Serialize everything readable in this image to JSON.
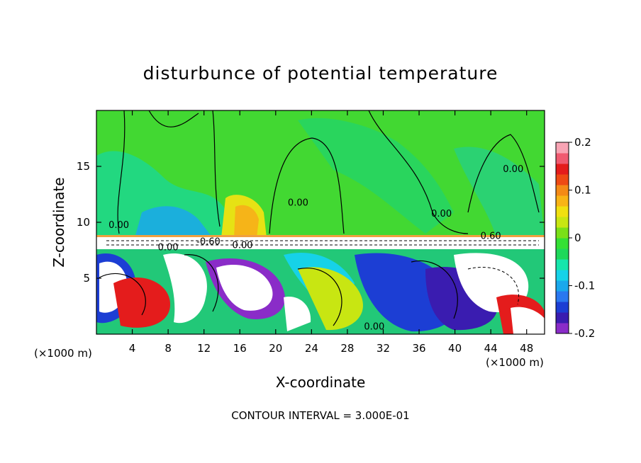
{
  "chart_data": {
    "type": "heatmap",
    "title": "disturbunce of potential temperature",
    "xlabel": "X-coordinate",
    "ylabel": "Z-coordinate",
    "x_unit_label_left": "(×1000 m)",
    "x_unit_label_right": "(×1000 m)",
    "xlim": [
      0,
      50
    ],
    "ylim": [
      0,
      20
    ],
    "x_ticks": [
      4,
      8,
      12,
      16,
      20,
      24,
      28,
      32,
      36,
      40,
      44,
      48
    ],
    "y_ticks": [
      5,
      10,
      15
    ],
    "footer": "CONTOUR INTERVAL = 3.000E-01",
    "contour_labels": [
      {
        "text": "0.00",
        "x": 2.5,
        "y": 9.5
      },
      {
        "text": "0.00",
        "x": 8.0,
        "y": 7.5
      },
      {
        "text": "0.00",
        "x": 16.3,
        "y": 7.7
      },
      {
        "text": "0.00",
        "x": 22.5,
        "y": 11.5
      },
      {
        "text": "0.00",
        "x": 38.5,
        "y": 10.5
      },
      {
        "text": "0.00",
        "x": 46.5,
        "y": 14.5
      },
      {
        "text": "0.60",
        "x": 44.0,
        "y": 8.5
      },
      {
        "text": "-0.60",
        "x": 12.5,
        "y": 8.0
      },
      {
        "text": "0.00",
        "x": 31.0,
        "y": 0.4
      }
    ],
    "colorbar": {
      "min": -0.2,
      "max": 0.2,
      "tick_labels": [
        "0.2",
        "0.1",
        "0",
        "-0.1",
        "-0.2"
      ],
      "tick_values": [
        0.2,
        0.1,
        0,
        -0.1,
        -0.2
      ],
      "colors": [
        "#8a2cc8",
        "#3a1cb0",
        "#1c3ed4",
        "#2a78f0",
        "#1aa8ec",
        "#16d2e8",
        "#16e6ac",
        "#1ed85a",
        "#34e034",
        "#7ae018",
        "#c8e612",
        "#f0e010",
        "#f8b416",
        "#f48a16",
        "#ee4a14",
        "#e41c1c",
        "#f05a70",
        "#f8a4b4"
      ]
    }
  }
}
